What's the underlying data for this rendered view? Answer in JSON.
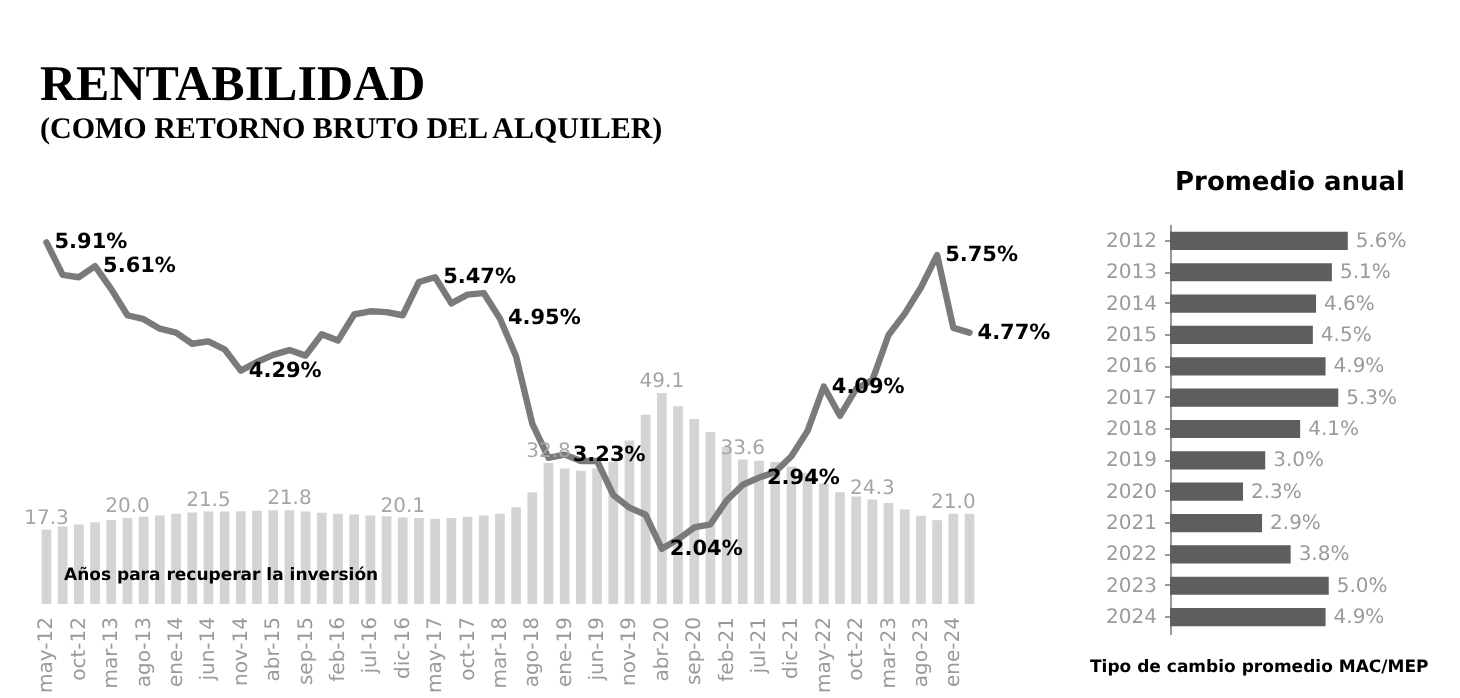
{
  "chart_data": [
    {
      "type": "line",
      "title": "RENTABILIDAD",
      "subtitle": "(COMO RETORNO BRUTO DEL ALQUILER)",
      "tick_labels": "x",
      "categories": [
        "may-12",
        null,
        "oct-12",
        null,
        "mar-13",
        null,
        "ago-13",
        null,
        "ene-14",
        null,
        "jun-14",
        null,
        "nov-14",
        null,
        "abr-15",
        null,
        "sep-15",
        null,
        "feb-16",
        null,
        "jul-16",
        null,
        "dic-16",
        null,
        "may-17",
        null,
        "oct-17",
        null,
        "mar-18",
        null,
        "ago-18",
        null,
        "ene-19",
        null,
        "jun-19",
        null,
        "nov-19",
        null,
        "abr-20",
        null,
        "sep-20",
        null,
        "feb-21",
        null,
        "jul-21",
        null,
        "dic-21",
        null,
        "may-22",
        null,
        "oct-22",
        null,
        "mar-23",
        null,
        "ago-23",
        null,
        "ene-24",
        null
      ],
      "series": [
        {
          "name": "Años para recuperar la inversión",
          "type": "bar",
          "axis": "y2",
          "color": "#d4d4d4",
          "values": [
            17.3,
            18.0,
            18.5,
            19.0,
            19.5,
            20.0,
            20.3,
            20.6,
            21.0,
            21.3,
            21.5,
            21.5,
            21.6,
            21.7,
            21.8,
            21.8,
            21.5,
            21.2,
            21.0,
            20.8,
            20.6,
            20.4,
            20.1,
            20.0,
            19.8,
            20.0,
            20.3,
            20.6,
            21.0,
            22.5,
            26.0,
            32.8,
            31.5,
            31.0,
            31.5,
            33.0,
            38.0,
            44.0,
            49.1,
            46.0,
            43.0,
            40.0,
            36.5,
            33.6,
            33.3,
            33.0,
            32.0,
            30.5,
            28.0,
            26.0,
            25.0,
            24.3,
            23.5,
            22.0,
            20.5,
            19.5,
            21.0,
            21.0
          ],
          "value_labels": [
            "17.3",
            null,
            null,
            null,
            null,
            "20.0",
            null,
            null,
            null,
            null,
            "21.5",
            null,
            null,
            null,
            null,
            "21.8",
            null,
            null,
            null,
            null,
            null,
            null,
            "20.1",
            null,
            null,
            null,
            null,
            null,
            null,
            null,
            null,
            "32.8",
            null,
            null,
            null,
            null,
            null,
            null,
            "49.1",
            null,
            null,
            null,
            null,
            "33.6",
            null,
            null,
            null,
            null,
            null,
            null,
            null,
            "24.3",
            null,
            null,
            null,
            null,
            "21.0",
            null
          ]
        },
        {
          "type": "line",
          "color": "#7a7a7a",
          "values": [
            5.91,
            5.5,
            5.47,
            5.61,
            5.32,
            4.99,
            4.94,
            4.82,
            4.77,
            4.63,
            4.66,
            4.56,
            4.29,
            4.4,
            4.49,
            4.55,
            4.48,
            4.75,
            4.67,
            5.0,
            5.04,
            5.03,
            4.99,
            5.41,
            5.47,
            5.14,
            5.25,
            5.27,
            4.95,
            4.47,
            3.62,
            3.19,
            3.23,
            3.15,
            3.15,
            2.72,
            2.56,
            2.47,
            2.04,
            2.16,
            2.31,
            2.35,
            2.65,
            2.85,
            2.94,
            3.01,
            3.21,
            3.53,
            4.09,
            3.72,
            4.06,
            4.17,
            4.74,
            5.01,
            5.34,
            5.75,
            4.83,
            4.77
          ],
          "value_labels": [
            "5.91%",
            null,
            null,
            "5.61%",
            null,
            null,
            null,
            null,
            null,
            null,
            null,
            null,
            "4.29%",
            null,
            null,
            null,
            null,
            null,
            null,
            null,
            null,
            null,
            null,
            null,
            "5.47%",
            null,
            null,
            null,
            "4.95%",
            null,
            null,
            null,
            "3.23%",
            null,
            null,
            null,
            null,
            null,
            "2.04%",
            null,
            null,
            null,
            null,
            null,
            "2.94%",
            null,
            null,
            null,
            "4.09%",
            null,
            null,
            null,
            null,
            null,
            null,
            "5.75%",
            null,
            "4.77%"
          ]
        }
      ]
    },
    {
      "type": "bar",
      "orientation": "horizontal",
      "title": "Promedio anual",
      "tick_labels": "y",
      "color": "#5e5e5e",
      "categories": [
        "2012",
        "2013",
        "2014",
        "2015",
        "2016",
        "2017",
        "2018",
        "2019",
        "2020",
        "2021",
        "2022",
        "2023",
        "2024"
      ],
      "values": [
        5.6,
        5.1,
        4.6,
        4.5,
        4.9,
        5.3,
        4.1,
        3.0,
        2.3,
        2.9,
        3.8,
        5.0,
        4.9
      ],
      "value_labels": [
        "5.6%",
        "5.1%",
        "4.6%",
        "4.5%",
        "4.9%",
        "5.3%",
        "4.1%",
        "3.0%",
        "2.3%",
        "2.9%",
        "3.8%",
        "5.0%",
        "4.9%"
      ],
      "annotations": [
        "Tipo de cambio promedio MAC/MEP"
      ]
    }
  ]
}
